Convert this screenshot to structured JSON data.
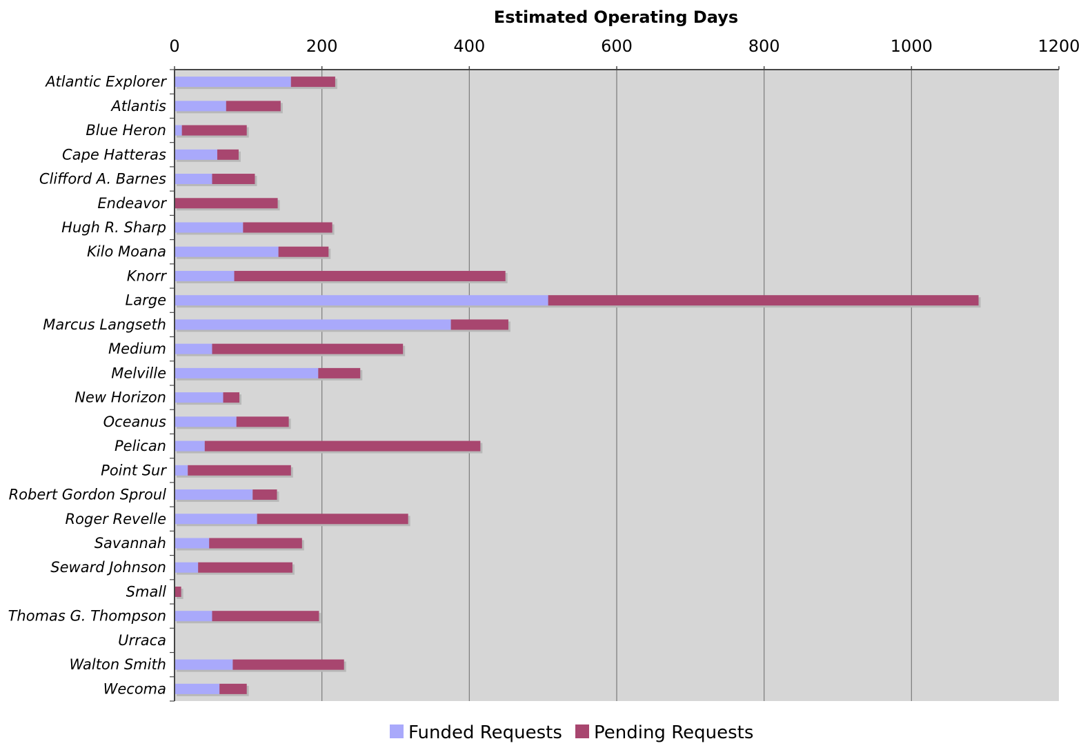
{
  "chart_data": {
    "type": "bar",
    "orientation": "horizontal",
    "stacked": true,
    "title": "",
    "xlabel": "Estimated Operating Days",
    "ylabel": "",
    "xlim": [
      0,
      1200
    ],
    "x_ticks": [
      "0",
      "200",
      "400",
      "600",
      "800",
      "1000",
      "1200"
    ],
    "grid": true,
    "legend_position": "bottom",
    "categories": [
      "Atlantic Explorer",
      "Atlantis",
      "Blue Heron",
      "Cape Hatteras",
      "Clifford A. Barnes",
      "Endeavor",
      "Hugh R. Sharp",
      "Kilo Moana",
      "Knorr",
      "Large",
      "Marcus Langseth",
      "Medium",
      "Melville",
      "New Horizon",
      "Oceanus",
      "Pelican",
      "Point Sur",
      "Robert Gordon Sproul",
      "Roger Revelle",
      "Savannah",
      "Seward Johnson",
      "Small",
      "Thomas G. Thompson",
      "Urraca",
      "Walton Smith",
      "Wecoma"
    ],
    "series": [
      {
        "name": "Funded Requests",
        "color": "#a9a9fb",
        "values": [
          158,
          70,
          10,
          58,
          51,
          0,
          93,
          141,
          81,
          507,
          375,
          51,
          195,
          66,
          84,
          41,
          18,
          106,
          112,
          47,
          32,
          0,
          51,
          0,
          79,
          61
        ]
      },
      {
        "name": "Pending Requests",
        "color": "#a8466f",
        "values": [
          60,
          74,
          88,
          29,
          58,
          140,
          121,
          68,
          368,
          584,
          78,
          259,
          57,
          22,
          71,
          374,
          140,
          33,
          205,
          126,
          128,
          9,
          145,
          0,
          151,
          37
        ]
      }
    ]
  },
  "colors": {
    "plot_background": "#d6d6d6",
    "gridline": "#7a7a7a",
    "axis": "#444444",
    "bar_shadow": "#b8b8b8"
  }
}
